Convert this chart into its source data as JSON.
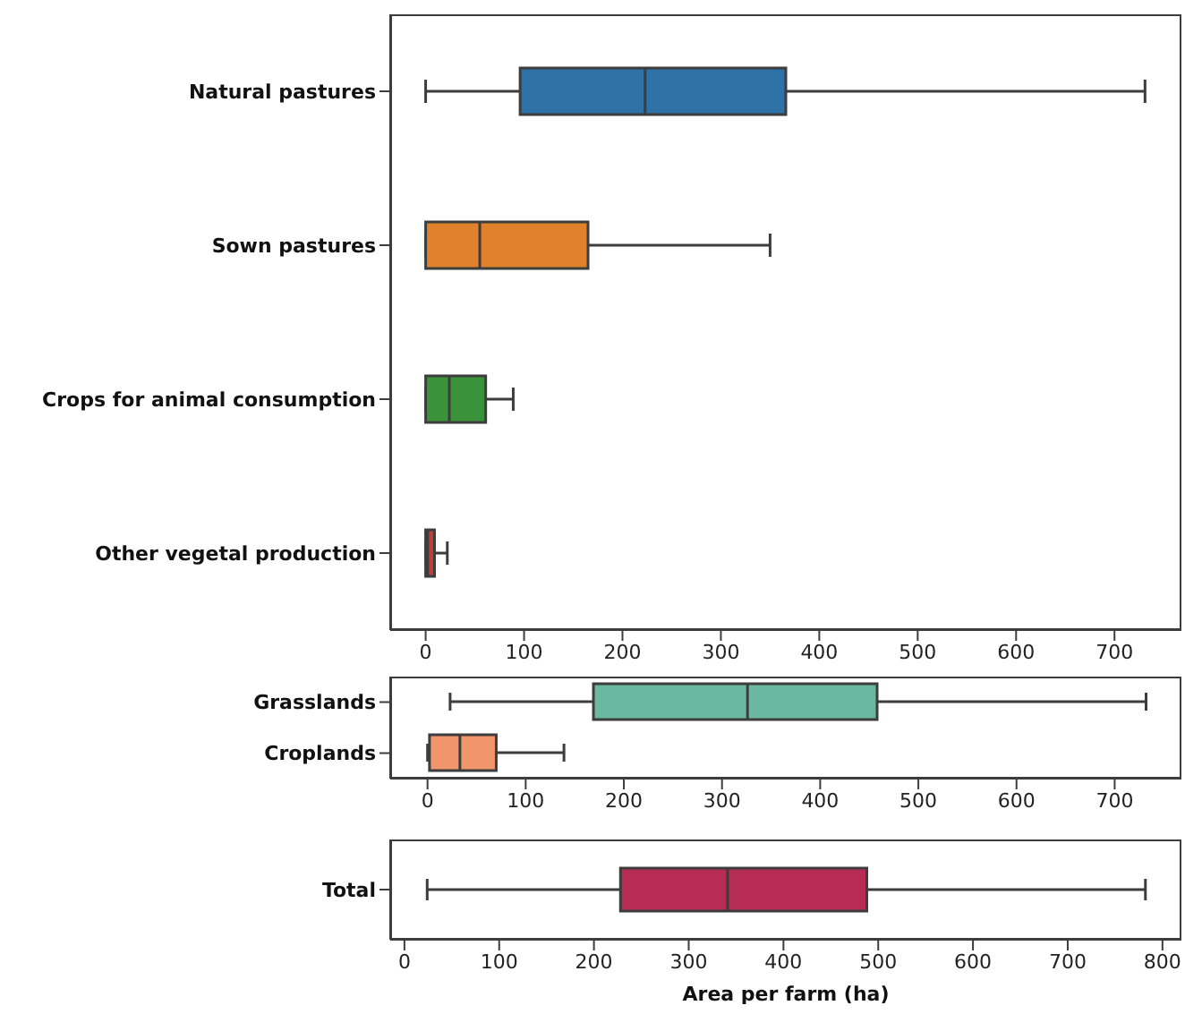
{
  "chart_data": [
    {
      "type": "box",
      "orientation": "horizontal",
      "categories": [
        "Natural pastures",
        "Sown pastures",
        "Crops for animal consumption",
        "Other vegetal production"
      ],
      "boxes": [
        {
          "low": 0,
          "q1": 96,
          "median": 223,
          "q3": 366,
          "high": 731
        },
        {
          "low": 0,
          "q1": 0,
          "median": 55,
          "q3": 165,
          "high": 350
        },
        {
          "low": 0,
          "q1": 0,
          "median": 24,
          "q3": 61,
          "high": 89
        },
        {
          "low": 0,
          "q1": 0,
          "median": 2,
          "q3": 9,
          "high": 22
        }
      ],
      "colors": [
        "#2e72a8",
        "#e1812c",
        "#3a923a",
        "#c03d3e"
      ],
      "xlim": [
        -36,
        768
      ],
      "xticks": [
        0,
        100,
        200,
        300,
        400,
        500,
        600,
        700
      ],
      "grid": false
    },
    {
      "type": "box",
      "orientation": "horizontal",
      "categories": [
        "Grasslands",
        "Croplands"
      ],
      "boxes": [
        {
          "low": 23,
          "q1": 169,
          "median": 326,
          "q3": 458,
          "high": 732
        },
        {
          "low": 0,
          "q1": 2,
          "median": 33,
          "q3": 70,
          "high": 139
        }
      ],
      "colors": [
        "#6bb8a0",
        "#f0956c"
      ],
      "xlim": [
        -38,
        768
      ],
      "xticks": [
        0,
        100,
        200,
        300,
        400,
        500,
        600,
        700
      ],
      "grid": false
    },
    {
      "type": "box",
      "orientation": "horizontal",
      "categories": [
        "Total"
      ],
      "boxes": [
        {
          "low": 24,
          "q1": 228,
          "median": 341,
          "q3": 488,
          "high": 782
        }
      ],
      "colors": [
        "#b72c55"
      ],
      "xlim": [
        -15,
        820
      ],
      "xticks": [
        0,
        100,
        200,
        300,
        400,
        500,
        600,
        700,
        800
      ],
      "xlabel": "Area per farm (ha)",
      "grid": false
    }
  ]
}
